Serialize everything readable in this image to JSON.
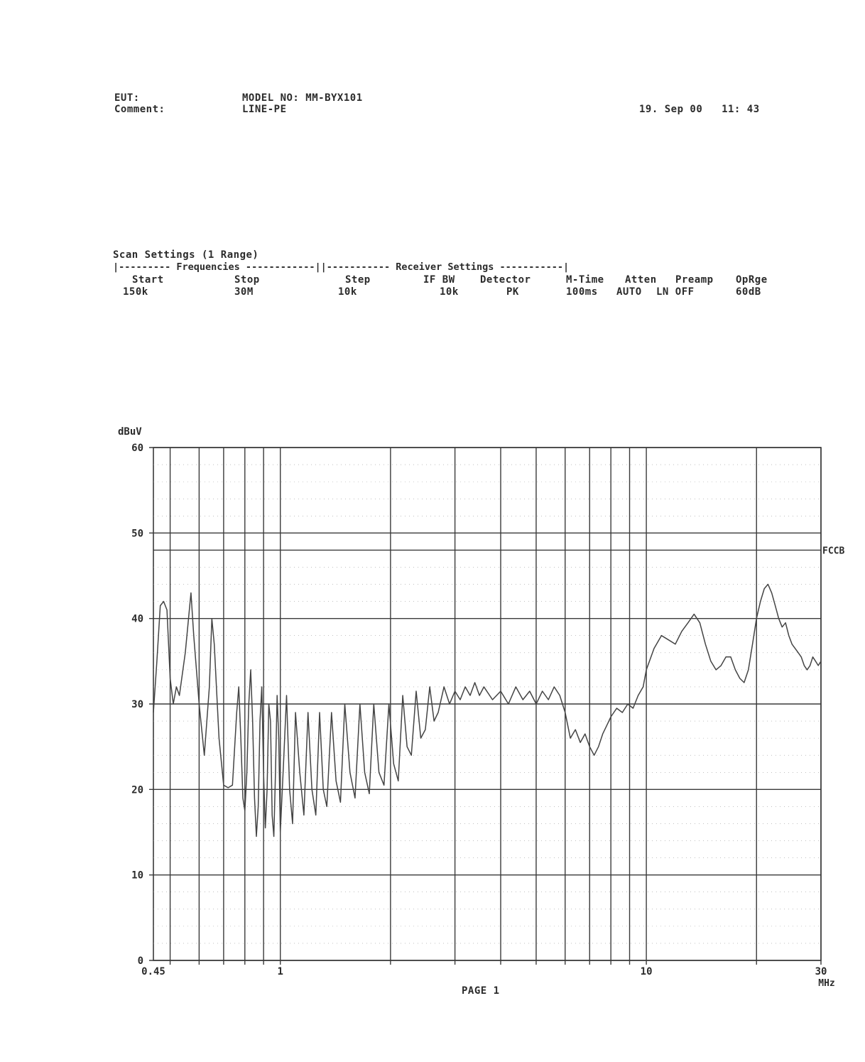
{
  "header": {
    "eut_label": "EUT:",
    "eut_value": "MODEL NO: MM-BYX101",
    "comment_label": "Comment:",
    "comment_value": "LINE-PE",
    "datetime": "19. Sep 00   11: 43"
  },
  "scan_settings": {
    "title": "Scan Settings (1 Range)",
    "freq_rule": "|--------- Frequencies ------------||----------- Receiver Settings -----------|",
    "headers": [
      "Start",
      "Stop",
      "Step",
      "IF BW",
      "Detector",
      "M-Time",
      "Atten",
      "Preamp",
      "OpRge"
    ],
    "values": [
      "150k",
      "30M",
      "10k",
      "10k",
      "PK",
      "100ms",
      "AUTO",
      "LN OFF",
      "60dB"
    ]
  },
  "footer": {
    "page_label": "PAGE 1"
  },
  "colors": {
    "ink": "#2b2b2b",
    "grid": "#3a3a3a",
    "background": "#ffffff"
  },
  "chart_data": {
    "type": "line",
    "ylabel": "dBuV",
    "xunit": "MHz",
    "xscale": "log",
    "xlim": [
      0.45,
      30
    ],
    "ylim": [
      0,
      60
    ],
    "yticks": [
      0,
      10,
      20,
      30,
      40,
      50,
      60
    ],
    "xtick_labels": [
      {
        "x": 0.45,
        "label": "0.45"
      },
      {
        "x": 1,
        "label": "1"
      },
      {
        "x": 10,
        "label": "10"
      },
      {
        "x": 30,
        "label": "30"
      }
    ],
    "vertical_gridlines": [
      0.5,
      0.6,
      0.7,
      0.8,
      0.9,
      1,
      2,
      3,
      4,
      5,
      6,
      7,
      8,
      9,
      10,
      20,
      30
    ],
    "grid": true,
    "limit_lines": [
      {
        "name": "FCCB",
        "value": 48
      }
    ],
    "series": [
      {
        "points": [
          [
            0.45,
            29
          ],
          [
            0.46,
            35
          ],
          [
            0.47,
            41.5
          ],
          [
            0.48,
            42
          ],
          [
            0.49,
            41
          ],
          [
            0.5,
            33
          ],
          [
            0.51,
            30
          ],
          [
            0.52,
            32
          ],
          [
            0.53,
            31
          ],
          [
            0.55,
            36
          ],
          [
            0.57,
            43
          ],
          [
            0.58,
            38
          ],
          [
            0.6,
            30
          ],
          [
            0.62,
            24
          ],
          [
            0.64,
            32
          ],
          [
            0.65,
            40
          ],
          [
            0.66,
            37
          ],
          [
            0.68,
            26
          ],
          [
            0.7,
            20.5
          ],
          [
            0.72,
            20.2
          ],
          [
            0.74,
            20.5
          ],
          [
            0.76,
            29
          ],
          [
            0.77,
            32
          ],
          [
            0.78,
            26
          ],
          [
            0.79,
            19
          ],
          [
            0.8,
            17.5
          ],
          [
            0.81,
            22
          ],
          [
            0.82,
            30
          ],
          [
            0.83,
            34
          ],
          [
            0.84,
            28
          ],
          [
            0.85,
            19
          ],
          [
            0.86,
            14.5
          ],
          [
            0.87,
            18
          ],
          [
            0.88,
            28
          ],
          [
            0.89,
            32
          ],
          [
            0.9,
            22
          ],
          [
            0.91,
            15.5
          ],
          [
            0.92,
            20
          ],
          [
            0.93,
            30
          ],
          [
            0.94,
            28
          ],
          [
            0.95,
            17
          ],
          [
            0.96,
            14.5
          ],
          [
            0.97,
            22
          ],
          [
            0.98,
            31
          ],
          [
            0.99,
            26
          ],
          [
            1.0,
            15
          ],
          [
            1.02,
            23
          ],
          [
            1.04,
            31
          ],
          [
            1.06,
            20
          ],
          [
            1.08,
            16
          ],
          [
            1.1,
            29
          ],
          [
            1.13,
            22
          ],
          [
            1.16,
            17
          ],
          [
            1.19,
            29
          ],
          [
            1.22,
            20
          ],
          [
            1.25,
            17
          ],
          [
            1.28,
            29
          ],
          [
            1.31,
            20
          ],
          [
            1.34,
            18
          ],
          [
            1.38,
            29
          ],
          [
            1.42,
            21
          ],
          [
            1.46,
            18.5
          ],
          [
            1.5,
            30
          ],
          [
            1.55,
            22
          ],
          [
            1.6,
            19
          ],
          [
            1.65,
            30
          ],
          [
            1.7,
            22
          ],
          [
            1.75,
            19.5
          ],
          [
            1.8,
            30
          ],
          [
            1.86,
            22
          ],
          [
            1.92,
            20.5
          ],
          [
            1.98,
            30
          ],
          [
            2.04,
            23
          ],
          [
            2.1,
            21
          ],
          [
            2.16,
            31
          ],
          [
            2.22,
            25
          ],
          [
            2.28,
            24
          ],
          [
            2.35,
            31.5
          ],
          [
            2.42,
            26
          ],
          [
            2.49,
            27
          ],
          [
            2.56,
            32
          ],
          [
            2.63,
            28
          ],
          [
            2.7,
            29
          ],
          [
            2.8,
            32
          ],
          [
            2.9,
            30
          ],
          [
            3.0,
            31.5
          ],
          [
            3.1,
            30.5
          ],
          [
            3.2,
            32
          ],
          [
            3.3,
            31
          ],
          [
            3.4,
            32.5
          ],
          [
            3.5,
            31
          ],
          [
            3.6,
            32
          ],
          [
            3.8,
            30.5
          ],
          [
            4.0,
            31.5
          ],
          [
            4.2,
            30
          ],
          [
            4.4,
            32
          ],
          [
            4.6,
            30.5
          ],
          [
            4.8,
            31.5
          ],
          [
            5.0,
            30
          ],
          [
            5.2,
            31.5
          ],
          [
            5.4,
            30.5
          ],
          [
            5.6,
            32
          ],
          [
            5.8,
            31
          ],
          [
            6.0,
            29
          ],
          [
            6.2,
            26
          ],
          [
            6.4,
            27
          ],
          [
            6.6,
            25.5
          ],
          [
            6.8,
            26.5
          ],
          [
            7.0,
            25
          ],
          [
            7.2,
            24
          ],
          [
            7.4,
            25
          ],
          [
            7.6,
            26.5
          ],
          [
            7.8,
            27.5
          ],
          [
            8.0,
            28.5
          ],
          [
            8.3,
            29.5
          ],
          [
            8.6,
            29
          ],
          [
            8.9,
            30
          ],
          [
            9.2,
            29.5
          ],
          [
            9.5,
            31
          ],
          [
            9.8,
            32
          ],
          [
            10.0,
            34
          ],
          [
            10.5,
            36.5
          ],
          [
            11.0,
            38
          ],
          [
            11.5,
            37.5
          ],
          [
            12.0,
            37
          ],
          [
            12.5,
            38.5
          ],
          [
            13.0,
            39.5
          ],
          [
            13.5,
            40.5
          ],
          [
            14.0,
            39.5
          ],
          [
            14.5,
            37
          ],
          [
            15.0,
            35
          ],
          [
            15.5,
            34
          ],
          [
            16.0,
            34.5
          ],
          [
            16.5,
            35.5
          ],
          [
            17.0,
            35.5
          ],
          [
            17.5,
            34
          ],
          [
            18.0,
            33
          ],
          [
            18.5,
            32.5
          ],
          [
            19.0,
            34
          ],
          [
            19.5,
            37
          ],
          [
            20.0,
            40
          ],
          [
            20.5,
            42
          ],
          [
            21.0,
            43.5
          ],
          [
            21.5,
            44
          ],
          [
            22.0,
            43
          ],
          [
            22.5,
            41.5
          ],
          [
            23.0,
            40
          ],
          [
            23.5,
            39
          ],
          [
            24.0,
            39.5
          ],
          [
            24.5,
            38
          ],
          [
            25.0,
            37
          ],
          [
            25.5,
            36.5
          ],
          [
            26.0,
            36
          ],
          [
            26.5,
            35.5
          ],
          [
            27.0,
            34.5
          ],
          [
            27.5,
            34
          ],
          [
            28.0,
            34.5
          ],
          [
            28.5,
            35.5
          ],
          [
            29.0,
            35
          ],
          [
            29.5,
            34.5
          ],
          [
            30.0,
            35
          ]
        ]
      }
    ]
  }
}
